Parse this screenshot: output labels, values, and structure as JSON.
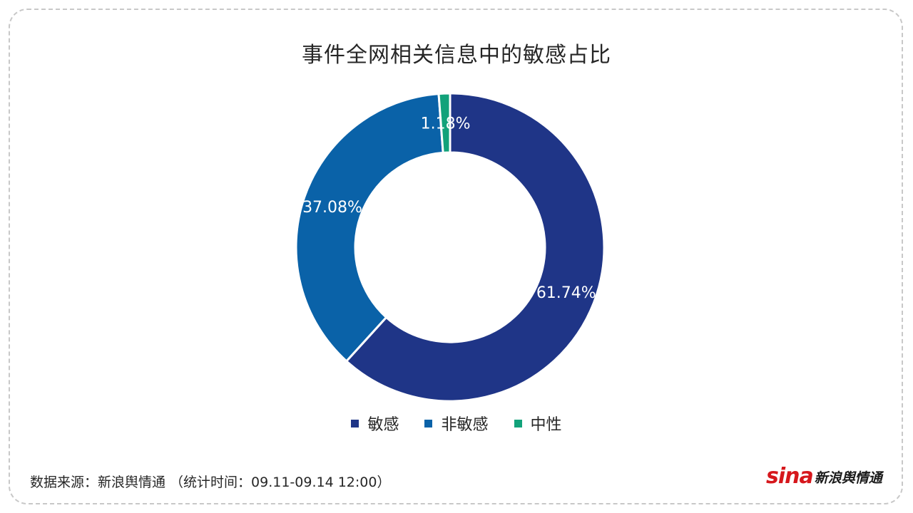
{
  "chart_data": {
    "type": "pie",
    "subtype": "donut",
    "title": "事件全网相关信息中的敏感占比",
    "categories": [
      "敏感",
      "非敏感",
      "中性"
    ],
    "values": [
      61.74,
      37.08,
      1.18
    ],
    "data_labels": [
      "61.74%",
      "37.08%",
      "1.18%"
    ],
    "colors": [
      "#1f3587",
      "#0a62a8",
      "#12a27a"
    ],
    "legend_position": "bottom"
  },
  "footer": {
    "source": "数据来源：新浪舆情通 （统计时间：09.11-09.14 12:00）"
  },
  "logo": {
    "brand": "sina",
    "name": "新浪舆情通"
  }
}
